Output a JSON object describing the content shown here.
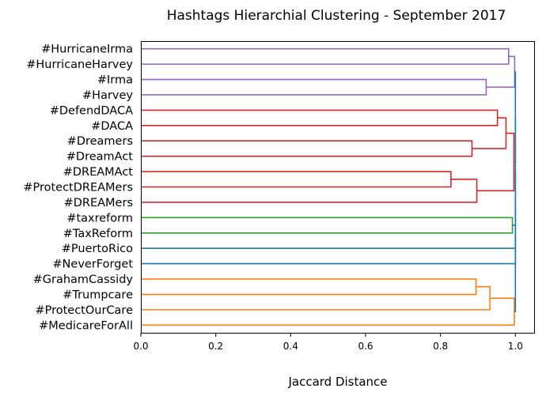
{
  "chart_data": {
    "type": "dendrogram",
    "orientation": "left",
    "title": "Hashtags Hierarchial Clustering - September 2017",
    "xlabel": "Jaccard Distance",
    "xlim": [
      0.0,
      1.05
    ],
    "xticks": [
      0.0,
      0.2,
      0.4,
      0.6,
      0.8,
      1.0
    ],
    "xtick_labels": [
      "0.0",
      "0.2",
      "0.4",
      "0.6",
      "0.8",
      "1.0"
    ],
    "grid": false,
    "leaves": [
      "#HurricaneIrma",
      "#HurricaneHarvey",
      "#Irma",
      "#Harvey",
      "#DefendDACA",
      "#DACA",
      "#Dreamers",
      "#DreamAct",
      "#DREAMAct",
      "#ProtectDREAMers",
      "#DREAMers",
      "#taxreform",
      "#TaxReform",
      "#PuertoRico",
      "#NeverForget",
      "#GrahamCassidy",
      "#Trumpcare",
      "#ProtectOurCare",
      "#MedicareForAll"
    ],
    "merges": [
      {
        "id": "m0",
        "a": 0,
        "b": 1,
        "height": 0.982,
        "color": "#9467bd"
      },
      {
        "id": "m1",
        "a": 2,
        "b": 3,
        "height": 0.922,
        "color": "#9467bd"
      },
      {
        "id": "m2",
        "a": "m0",
        "b": "m1",
        "height": 0.998,
        "color": "#9467bd"
      },
      {
        "id": "m3",
        "a": 4,
        "b": 5,
        "height": 0.952,
        "color": "#d62728"
      },
      {
        "id": "m4",
        "a": 6,
        "b": 7,
        "height": 0.884,
        "color": "#d62728"
      },
      {
        "id": "m5",
        "a": "m3",
        "b": "m4",
        "height": 0.975,
        "color": "#d62728"
      },
      {
        "id": "m6",
        "a": 8,
        "b": 9,
        "height": 0.828,
        "color": "#d62728"
      },
      {
        "id": "m7",
        "a": "m6",
        "b": 10,
        "height": 0.897,
        "color": "#d62728"
      },
      {
        "id": "m8",
        "a": "m5",
        "b": "m7",
        "height": 0.996,
        "color": "#d62728"
      },
      {
        "id": "m9",
        "a": 11,
        "b": 12,
        "height": 0.992,
        "color": "#2ca02c"
      },
      {
        "id": "m10",
        "a": 15,
        "b": 16,
        "height": 0.895,
        "color": "#ff7f0e"
      },
      {
        "id": "m11",
        "a": "m10",
        "b": 17,
        "height": 0.932,
        "color": "#ff7f0e"
      },
      {
        "id": "m12",
        "a": "m11",
        "b": 18,
        "height": 0.997,
        "color": "#ff7f0e"
      },
      {
        "id": "m13",
        "a": "m2",
        "b": "m8",
        "height": 1.0,
        "color": "#1f77b4"
      },
      {
        "id": "m14",
        "a": "m13",
        "b": "m9",
        "height": 1.0,
        "color": "#1f77b4"
      },
      {
        "id": "m15",
        "a": "m14",
        "b": 13,
        "height": 1.0,
        "color": "#1f77b4"
      },
      {
        "id": "m16",
        "a": "m15",
        "b": 14,
        "height": 1.0,
        "color": "#1f77b4"
      },
      {
        "id": "m17",
        "a": "m16",
        "b": "m12",
        "height": 1.0,
        "color": "#1f77b4"
      }
    ]
  }
}
